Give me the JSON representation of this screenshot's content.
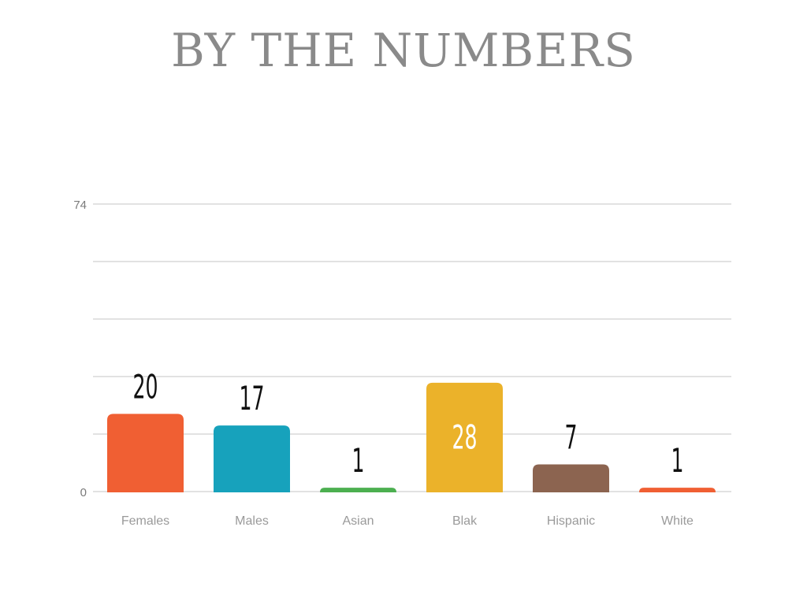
{
  "title": "BY THE NUMBERS",
  "chart_data": {
    "type": "bar",
    "categories": [
      "Females",
      "Males",
      "Asian",
      "Blak",
      "Hispanic",
      "White"
    ],
    "values": [
      20,
      17,
      1,
      28,
      7,
      1
    ],
    "colors": [
      "#f05f33",
      "#17a2bc",
      "#4caf50",
      "#ebb22a",
      "#8c6450",
      "#f05f33"
    ],
    "ylim": [
      0,
      74
    ],
    "yticks": [
      "0",
      "74"
    ],
    "grid": true,
    "data_labels": true,
    "xlabel": "",
    "ylabel": ""
  }
}
